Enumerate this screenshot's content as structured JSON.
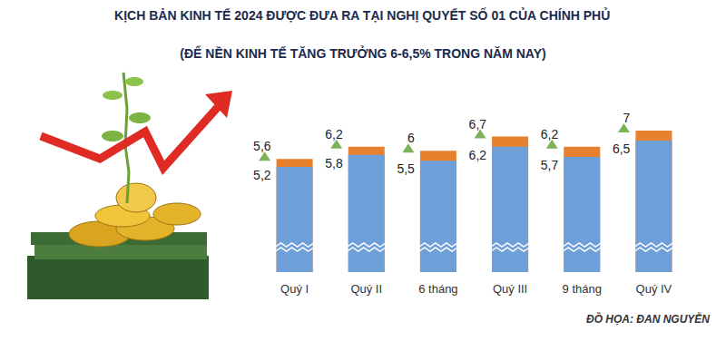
{
  "chart_data": {
    "type": "bar",
    "title": "KỊCH BẢN KINH TẾ 2024 ĐƯỢC ĐƯA RA TẠI NGHỊ QUYẾT SỐ 01 CỦA CHÍNH PHỦ",
    "subtitle": "(ĐỂ NỀN KINH TẾ TĂNG TRƯỞNG 6-6,5% TRONG NĂM NAY)",
    "annotations": [
      "ĐỒ HỌA: ĐAN NGUYỄN"
    ],
    "categories": [
      "Quý I",
      "Quý II",
      "6 tháng",
      "Quý III",
      "9 tháng",
      "Quý IV"
    ],
    "series": [
      {
        "values": [
          5.6,
          6.2,
          6,
          6.7,
          6.2,
          7
        ],
        "value_labels": [
          "5,6",
          "6,2",
          "6",
          "6,7",
          "6,2",
          "7"
        ],
        "color": "#e8812d",
        "marker": "triangle"
      },
      {
        "values": [
          5.2,
          5.8,
          5.5,
          6.2,
          5.7,
          6.5
        ],
        "value_labels": [
          "5,2",
          "5,8",
          "5,5",
          "6,2",
          "5,7",
          "6,5"
        ],
        "color": "#6f9fd8"
      }
    ],
    "ylim": [
      0,
      7.4
    ],
    "grid": false,
    "data_labels": true,
    "tick_labels": "x"
  }
}
